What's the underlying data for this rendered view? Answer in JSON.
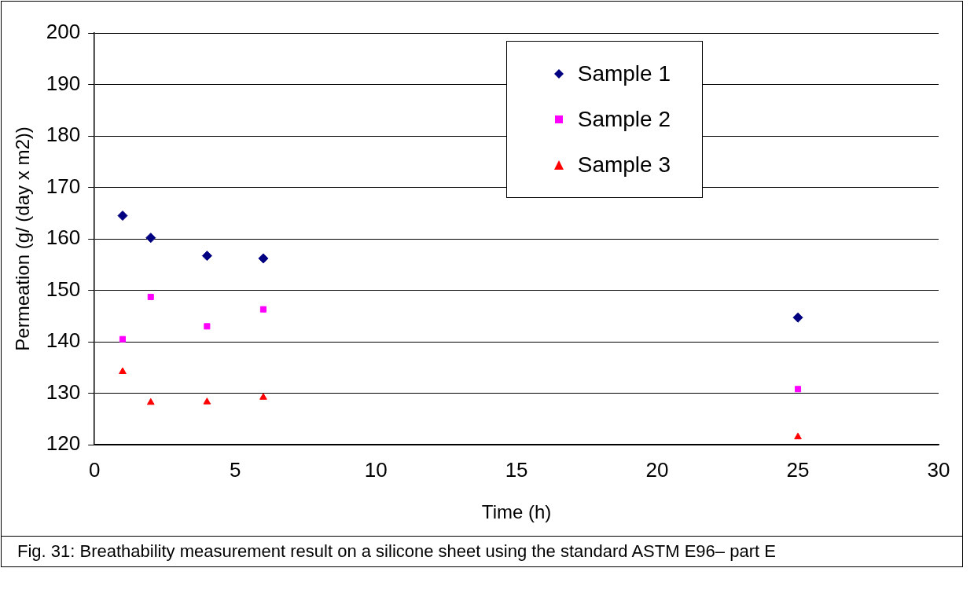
{
  "chart_data": {
    "type": "scatter",
    "xlabel": "Time (h)",
    "ylabel": "Permeation (g/ (day x m2))",
    "annotations": [
      "Fig. 31: Breathability measurement result on a silicone sheet using the standard ASTM E96– part E"
    ],
    "x": [
      1,
      2,
      4,
      6,
      25
    ],
    "series": [
      {
        "name": "Sample 1",
        "color": "#000080",
        "marker": "diamond",
        "values": [
          164.5,
          160.2,
          156.7,
          156.2,
          144.7
        ]
      },
      {
        "name": "Sample 2",
        "color": "#ff00ff",
        "marker": "square",
        "values": [
          140.5,
          148.7,
          143.0,
          146.3,
          130.8
        ]
      },
      {
        "name": "Sample 3",
        "color": "#ff0000",
        "marker": "triangle",
        "values": [
          134.2,
          128.2,
          128.3,
          129.2,
          121.5
        ]
      }
    ],
    "xlim": [
      0,
      30
    ],
    "xticks": [
      0,
      5,
      10,
      15,
      20,
      25,
      30
    ],
    "ylim": [
      120,
      200
    ],
    "yticks": [
      120,
      130,
      140,
      150,
      160,
      170,
      180,
      190,
      200
    ],
    "grid": "y",
    "legend": "top right"
  }
}
